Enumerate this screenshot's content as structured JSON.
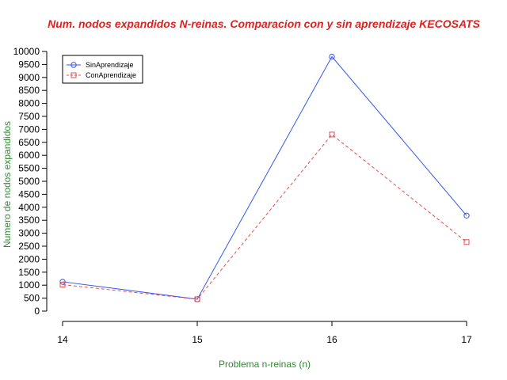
{
  "chart_data": {
    "type": "line",
    "title": "Num. nodos expandidos N-reinas. Comparacion con y sin aprendizaje KECOSATS",
    "xlabel": "Problema n-reinas (n)",
    "ylabel": "Numero de nodos expandidos",
    "x": [
      14,
      15,
      16,
      17
    ],
    "x_tick_labels": [
      "14",
      "15",
      "16",
      "17"
    ],
    "xlim": [
      14,
      17
    ],
    "ylim": [
      0,
      10000
    ],
    "y_ticks": [
      0,
      500,
      1000,
      1500,
      2000,
      2500,
      3000,
      3500,
      4000,
      4500,
      5000,
      5500,
      6000,
      6500,
      7000,
      7500,
      8000,
      8500,
      9000,
      9500,
      10000
    ],
    "y_tick_labels": [
      "0",
      "500",
      "1000",
      "1500",
      "2000",
      "2500",
      "3000",
      "3500",
      "4000",
      "4500",
      "5000",
      "5500",
      "6000",
      "6500",
      "7000",
      "7500",
      "8000",
      "8500",
      "9000",
      "9500",
      "10000"
    ],
    "grid": false,
    "legend_position": "top-left",
    "series": [
      {
        "name": "SinAprendizaje",
        "values": [
          1130,
          460,
          9800,
          3680
        ],
        "color": "#3355ee",
        "line_style": "solid",
        "marker": "circle"
      },
      {
        "name": "ConAprendizaje",
        "values": [
          1020,
          460,
          6800,
          2660
        ],
        "color": "#e05050",
        "line_style": "dashed",
        "marker": "square"
      }
    ],
    "colors": {
      "title": "#dd2222",
      "axis_labels": "#338833",
      "axes": "#000000"
    }
  }
}
